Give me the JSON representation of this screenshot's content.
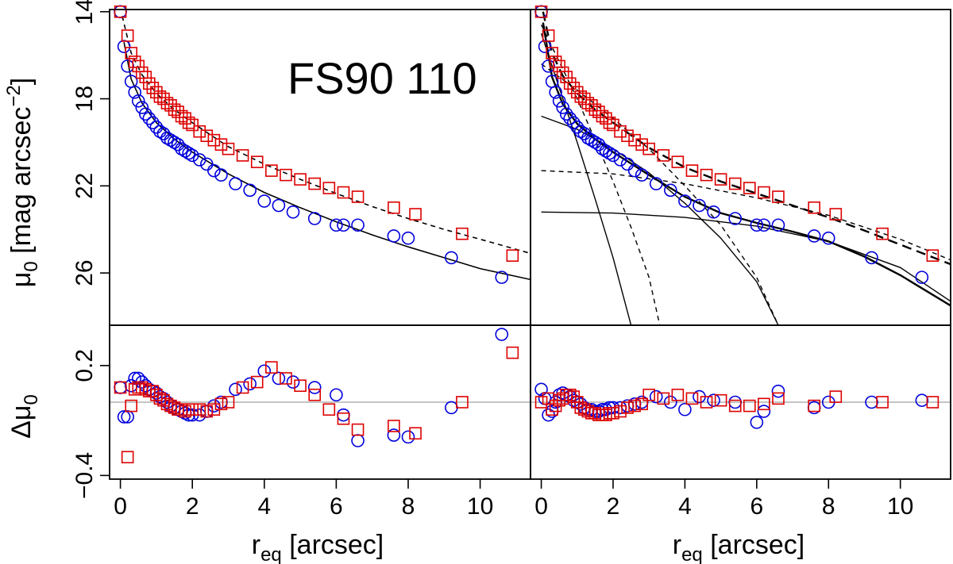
{
  "chart_data": {
    "type": "scatter",
    "annotation": "FS90 110",
    "x_axis": {
      "ticks": [
        "0",
        "2",
        "4",
        "6",
        "8",
        "10"
      ],
      "range": [
        -0.3,
        11.4
      ],
      "label_base": "r",
      "label_sub": "eq",
      "label_rest": " [arcsec]"
    },
    "top_y_axis": {
      "ticks": [
        "14",
        "18",
        "22",
        "26"
      ],
      "range": [
        13.9,
        28.4
      ],
      "label_base": "μ",
      "label_sub": "0",
      "label_rest": " [mag arcsec",
      "label_sup": "−2",
      "label_end": "]"
    },
    "bottom_y_axis": {
      "ticks": [
        "0.2",
        "−0.4"
      ],
      "tick_values": [
        0.2,
        -0.4
      ],
      "range": [
        -0.42,
        0.42
      ],
      "label_base": "Δμ",
      "label_sub": "0"
    },
    "colors": {
      "circle": "#0000dd",
      "square": "#dd0000",
      "line": "#000000",
      "zero": "#b0b0b0"
    },
    "series": [
      {
        "name": "blue circles",
        "marker": "circle",
        "x": [
          0.0,
          0.1,
          0.2,
          0.3,
          0.4,
          0.5,
          0.6,
          0.7,
          0.8,
          0.9,
          1.0,
          1.1,
          1.2,
          1.3,
          1.4,
          1.5,
          1.6,
          1.7,
          1.8,
          1.9,
          2.0,
          2.2,
          2.4,
          2.6,
          2.8,
          3.2,
          3.6,
          4.0,
          4.4,
          4.8,
          5.4,
          6.0,
          6.2,
          6.6,
          7.6,
          8.0,
          9.2,
          10.6
        ],
        "y_profile": [
          14.0,
          15.6,
          16.5,
          17.2,
          17.7,
          18.1,
          18.4,
          18.7,
          18.9,
          19.1,
          19.3,
          19.5,
          19.6,
          19.8,
          19.9,
          20.0,
          20.1,
          20.3,
          20.4,
          20.5,
          20.6,
          20.8,
          21.0,
          21.3,
          21.5,
          21.9,
          22.2,
          22.7,
          22.9,
          23.2,
          23.5,
          23.8,
          23.8,
          23.8,
          24.3,
          24.4,
          25.3,
          26.2
        ],
        "y_resid_left": [
          0.08,
          -0.08,
          -0.08,
          0.09,
          0.13,
          0.13,
          0.11,
          0.09,
          0.07,
          0.06,
          0.05,
          0.03,
          0.02,
          0.0,
          -0.02,
          -0.03,
          -0.04,
          -0.05,
          -0.06,
          -0.07,
          -0.07,
          -0.07,
          -0.05,
          -0.02,
          0.0,
          0.07,
          0.1,
          0.17,
          0.13,
          0.11,
          0.08,
          0.04,
          -0.07,
          -0.21,
          -0.18,
          -0.19,
          -0.03,
          0.37
        ],
        "y_resid_right": [
          0.07,
          0.02,
          -0.07,
          -0.05,
          0.0,
          0.04,
          0.05,
          0.04,
          0.03,
          0.01,
          0.0,
          -0.01,
          -0.03,
          -0.04,
          -0.04,
          -0.05,
          -0.05,
          -0.04,
          -0.04,
          -0.03,
          -0.03,
          -0.03,
          -0.02,
          -0.01,
          0.0,
          0.03,
          0.0,
          -0.04,
          0.03,
          0.01,
          0.0,
          -0.11,
          -0.05,
          0.06,
          -0.03,
          0.0,
          0.0,
          0.01
        ]
      },
      {
        "name": "red squares",
        "marker": "square",
        "x": [
          0.0,
          0.2,
          0.3,
          0.4,
          0.5,
          0.6,
          0.7,
          0.8,
          0.9,
          1.0,
          1.1,
          1.2,
          1.3,
          1.4,
          1.5,
          1.6,
          1.7,
          1.8,
          1.9,
          2.0,
          2.2,
          2.4,
          2.6,
          2.8,
          3.0,
          3.4,
          3.8,
          4.2,
          4.6,
          5.0,
          5.4,
          5.8,
          6.2,
          6.6,
          7.6,
          8.2,
          9.5,
          10.9
        ],
        "y_profile": [
          14.0,
          15.1,
          15.9,
          16.3,
          16.5,
          16.8,
          17.0,
          17.3,
          17.5,
          17.7,
          17.9,
          18.0,
          18.2,
          18.3,
          18.5,
          18.6,
          18.8,
          18.9,
          19.1,
          19.2,
          19.5,
          19.7,
          19.9,
          20.1,
          20.3,
          20.6,
          20.9,
          21.3,
          21.5,
          21.7,
          21.9,
          22.1,
          22.3,
          22.5,
          23.0,
          23.3,
          24.2,
          25.2
        ],
        "y_resid_left": [
          0.08,
          -0.3,
          -0.02,
          0.07,
          0.08,
          0.08,
          0.07,
          0.06,
          0.06,
          0.04,
          0.02,
          0.01,
          -0.01,
          -0.02,
          -0.03,
          -0.04,
          -0.04,
          -0.05,
          -0.04,
          -0.04,
          -0.04,
          -0.05,
          -0.04,
          -0.01,
          0.0,
          0.08,
          0.11,
          0.19,
          0.13,
          0.09,
          0.04,
          -0.04,
          -0.09,
          -0.15,
          -0.13,
          -0.17,
          0.0,
          0.27
        ],
        "y_resid_right": [
          0.0,
          0.02,
          -0.04,
          -0.02,
          0.01,
          0.02,
          0.04,
          0.04,
          0.03,
          0.0,
          -0.03,
          -0.04,
          -0.05,
          -0.06,
          -0.06,
          -0.07,
          -0.07,
          -0.07,
          -0.06,
          -0.06,
          -0.05,
          -0.03,
          -0.02,
          -0.01,
          0.04,
          0.02,
          0.04,
          0.02,
          0.0,
          0.01,
          -0.02,
          -0.02,
          -0.01,
          0.02,
          -0.02,
          0.03,
          0.0,
          0.0
        ]
      }
    ],
    "left_fit_lines": [
      {
        "name": "circle fit",
        "style": "solid",
        "x": [
          0.1,
          0.3,
          0.6,
          1.0,
          1.5,
          2.0,
          3.0,
          4.0,
          5.0,
          6.0,
          7.0,
          8.0,
          9.0,
          10.0,
          11.4
        ],
        "y": [
          15.4,
          17.1,
          18.2,
          19.1,
          19.85,
          20.45,
          21.45,
          22.3,
          23.0,
          23.65,
          24.25,
          24.8,
          25.3,
          25.8,
          26.3
        ]
      },
      {
        "name": "square fit",
        "style": "dashed",
        "x": [
          0.05,
          0.3,
          0.6,
          1.0,
          1.5,
          2.0,
          3.0,
          4.0,
          5.0,
          6.0,
          7.0,
          8.0,
          9.0,
          10.0,
          11.4
        ],
        "y": [
          14.2,
          15.9,
          16.9,
          17.75,
          18.5,
          19.1,
          20.2,
          21.0,
          21.7,
          22.35,
          22.95,
          23.5,
          24.0,
          24.45,
          25.1
        ]
      }
    ],
    "right_fit_lines": [
      {
        "name": "circle total",
        "style": "solid",
        "width": 2.4,
        "x": [
          0.05,
          0.3,
          0.6,
          1.0,
          1.5,
          2.0,
          3.0,
          4.0,
          5.0,
          6.0,
          7.0,
          8.0,
          9.0,
          10.0,
          11.4
        ],
        "y": [
          14.5,
          17.0,
          18.25,
          19.15,
          19.85,
          20.45,
          21.5,
          22.5,
          23.25,
          23.7,
          24.1,
          24.55,
          25.25,
          26.1,
          27.5
        ]
      },
      {
        "name": "square total",
        "style": "dashed",
        "width": 2.4,
        "x": [
          0.05,
          0.3,
          0.6,
          1.0,
          1.5,
          2.0,
          3.0,
          4.0,
          5.0,
          6.0,
          7.0,
          8.0,
          9.0,
          10.0,
          11.4
        ],
        "y": [
          14.0,
          15.9,
          16.95,
          17.75,
          18.5,
          19.1,
          20.25,
          21.15,
          21.8,
          22.35,
          22.9,
          23.45,
          24.05,
          24.7,
          25.6
        ]
      },
      {
        "name": "circle inner component",
        "style": "solid",
        "width": 1.4,
        "x": [
          0.0,
          0.5,
          1.0,
          1.5,
          2.0,
          2.5
        ],
        "y": [
          15.0,
          17.5,
          20.0,
          22.6,
          25.3,
          28.4
        ]
      },
      {
        "name": "circle middle component",
        "style": "solid",
        "width": 1.4,
        "x": [
          0.0,
          1.0,
          2.0,
          3.0,
          4.0,
          5.0,
          6.0,
          6.6
        ],
        "y": [
          18.8,
          19.4,
          20.3,
          21.4,
          22.8,
          24.4,
          26.4,
          28.4
        ]
      },
      {
        "name": "circle outer component",
        "style": "solid",
        "width": 1.4,
        "x": [
          0.0,
          2.0,
          4.0,
          6.0,
          8.0,
          10.0,
          11.4
        ],
        "y": [
          23.2,
          23.25,
          23.45,
          23.85,
          24.55,
          25.75,
          27.3
        ]
      },
      {
        "name": "square inner component",
        "style": "dashed",
        "width": 1.4,
        "x": [
          0.0,
          0.5,
          1.0,
          1.5,
          2.0,
          2.5,
          3.0,
          3.3
        ],
        "y": [
          14.6,
          16.3,
          18.0,
          19.9,
          21.8,
          23.9,
          26.2,
          28.4
        ]
      },
      {
        "name": "square middle component",
        "style": "dashed",
        "width": 1.4,
        "x": [
          0.0,
          1.0,
          2.0,
          3.0,
          4.0,
          5.0,
          6.0,
          6.6
        ],
        "y": [
          16.4,
          17.6,
          18.9,
          20.3,
          22.0,
          23.8,
          26.2,
          28.4
        ]
      },
      {
        "name": "square outer component",
        "style": "dashed",
        "width": 1.4,
        "x": [
          0.0,
          2.0,
          4.0,
          6.0,
          8.0,
          10.0,
          11.4
        ],
        "y": [
          21.3,
          21.45,
          21.9,
          22.55,
          23.35,
          24.45,
          25.4
        ]
      }
    ],
    "zero_line_value": 0
  }
}
